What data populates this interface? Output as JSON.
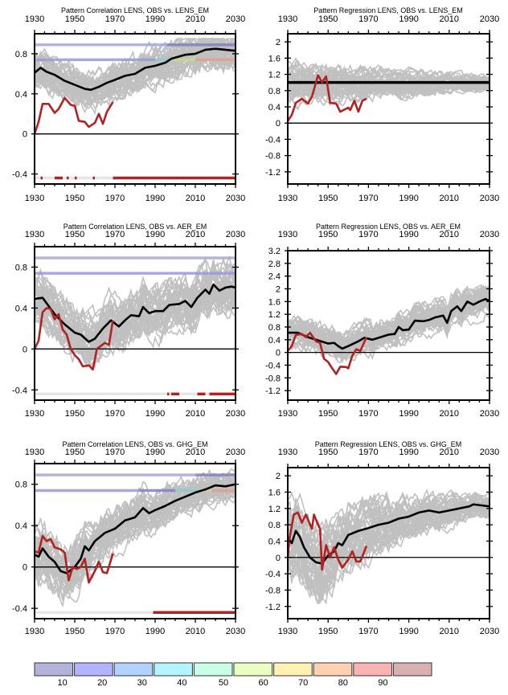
{
  "chart_data": [
    {
      "type": "line",
      "title": "Pattern Correlation LENS, OBS vs. LENS_EM",
      "xlim": [
        1930,
        2030
      ],
      "ylim": [
        -0.5,
        1.0
      ],
      "xticks": [
        1930,
        1950,
        1970,
        1990,
        2010,
        2030
      ],
      "yticks": [
        -0.4,
        0,
        0.4,
        0.8
      ],
      "ytick_labels": [
        "-0.4",
        "0",
        "0.4",
        "0.8"
      ],
      "ensemble": {
        "members": 40,
        "spread": 0.18,
        "color": "#c0c0c0"
      },
      "mean": {
        "color": "#000000",
        "x": [
          1930,
          1933,
          1936,
          1940,
          1945,
          1950,
          1955,
          1958,
          1962,
          1966,
          1970,
          1975,
          1980,
          1985,
          1990,
          1995,
          1998,
          2005,
          2010,
          2015,
          2020,
          2025,
          2030
        ],
        "y": [
          0.61,
          0.66,
          0.62,
          0.59,
          0.53,
          0.49,
          0.45,
          0.44,
          0.47,
          0.51,
          0.54,
          0.58,
          0.6,
          0.66,
          0.68,
          0.71,
          0.75,
          0.79,
          0.8,
          0.84,
          0.85,
          0.84,
          0.83
        ]
      },
      "obs": {
        "color": "#b22222",
        "x": [
          1930,
          1932,
          1934,
          1937,
          1940,
          1942,
          1945,
          1948,
          1950,
          1952,
          1955,
          1957,
          1960,
          1962,
          1964,
          1966,
          1969
        ],
        "y": [
          0.0,
          0.12,
          0.3,
          0.3,
          0.21,
          0.25,
          0.36,
          0.29,
          0.28,
          0.13,
          0.12,
          0.07,
          0.11,
          0.2,
          0.1,
          0.22,
          0.32
        ]
      },
      "ref_lines": [
        {
          "y": 0.89,
          "segments": [
            [
              1930,
              1996,
              "#a8a8dc"
            ],
            [
              1996,
              2030,
              "#8080c4"
            ]
          ]
        },
        {
          "y": 0.74,
          "segments": [
            [
              1930,
              1990,
              "#9a9ad8"
            ],
            [
              1990,
              1998,
              "#88cccc"
            ],
            [
              1998,
              2010,
              "#c8d890"
            ],
            [
              2010,
              2030,
              "#e0a090"
            ]
          ]
        }
      ],
      "significance": {
        "y": -0.44,
        "red_ranges": [
          [
            1933,
            1934
          ],
          [
            1940,
            1944
          ],
          [
            1946,
            1947
          ],
          [
            1950,
            1951
          ],
          [
            1959,
            1960
          ],
          [
            1969,
            2030
          ]
        ]
      }
    },
    {
      "type": "line",
      "title": "Pattern Regression LENS, OBS vs. LENS_EM",
      "xlim": [
        1930,
        2030
      ],
      "ylim": [
        -1.5,
        2.2
      ],
      "xticks": [
        1930,
        1950,
        1970,
        1990,
        2010,
        2030
      ],
      "yticks": [
        -1.2,
        -0.8,
        -0.4,
        0,
        0.4,
        0.8,
        1.2,
        1.6,
        2
      ],
      "ytick_labels": [
        "-1.2",
        "-0.8",
        "-0.4",
        "0",
        "0.4",
        "0.8",
        "1.2",
        "1.6",
        "2"
      ],
      "ensemble": {
        "members": 40,
        "spread": 0.45,
        "spread_end": 0.15,
        "color": "#c0c0c0"
      },
      "mean": {
        "color": "#000000",
        "x": [
          1930,
          2030
        ],
        "y": [
          1.0,
          1.0
        ]
      },
      "obs": {
        "color": "#b22222",
        "x": [
          1930,
          1932,
          1934,
          1937,
          1940,
          1942,
          1945,
          1947,
          1949,
          1951,
          1954,
          1956,
          1960,
          1961,
          1963,
          1965,
          1967,
          1969
        ],
        "y": [
          0.05,
          0.2,
          0.5,
          0.6,
          0.48,
          0.65,
          1.18,
          1.0,
          1.15,
          0.5,
          0.48,
          0.28,
          0.38,
          0.32,
          0.55,
          0.28,
          0.55,
          0.6
        ]
      }
    },
    {
      "type": "line",
      "title": "Pattern Correlation LENS, OBS vs. AER_EM",
      "xlim": [
        1930,
        2030
      ],
      "ylim": [
        -0.5,
        1.0
      ],
      "xticks": [
        1930,
        1950,
        1970,
        1990,
        2010,
        2030
      ],
      "yticks": [
        -0.4,
        0,
        0.4,
        0.8
      ],
      "ytick_labels": [
        "-0.4",
        "0",
        "0.4",
        "0.8"
      ],
      "ensemble": {
        "members": 40,
        "spread": 0.22,
        "color": "#c0c0c0"
      },
      "mean": {
        "color": "#000000",
        "x": [
          1930,
          1934,
          1937,
          1940,
          1945,
          1950,
          1953,
          1957,
          1960,
          1964,
          1968,
          1972,
          1975,
          1978,
          1982,
          1984,
          1987,
          1990,
          1994,
          1997,
          2002,
          2005,
          2008,
          2011,
          2015,
          2017,
          2019,
          2022,
          2025,
          2028,
          2030
        ],
        "y": [
          0.49,
          0.5,
          0.42,
          0.34,
          0.24,
          0.16,
          0.14,
          0.07,
          0.1,
          0.2,
          0.28,
          0.22,
          0.28,
          0.33,
          0.32,
          0.41,
          0.35,
          0.37,
          0.37,
          0.43,
          0.44,
          0.47,
          0.41,
          0.5,
          0.58,
          0.54,
          0.63,
          0.57,
          0.6,
          0.61,
          0.6
        ]
      },
      "obs": {
        "color": "#b22222",
        "x": [
          1930,
          1932,
          1934,
          1936,
          1938,
          1940,
          1942,
          1944,
          1946,
          1948,
          1950,
          1952,
          1954,
          1957,
          1959,
          1961,
          1965,
          1967,
          1969
        ],
        "y": [
          0.0,
          0.08,
          0.36,
          0.4,
          0.39,
          0.29,
          0.34,
          0.19,
          0.14,
          0.0,
          -0.06,
          -0.1,
          -0.17,
          -0.16,
          -0.2,
          0.0,
          0.06,
          0.04,
          0.28
        ]
      },
      "ref_lines": [
        {
          "y": 0.89,
          "segments": [
            [
              1930,
              2030,
              "#a8a8dc"
            ]
          ]
        },
        {
          "y": 0.74,
          "segments": [
            [
              1930,
              2030,
              "#9a9ad8"
            ]
          ]
        }
      ],
      "significance": {
        "y": -0.44,
        "red_ranges": [
          [
            1996,
            1997
          ],
          [
            1998,
            2002
          ],
          [
            2011,
            2015
          ],
          [
            2017,
            2030
          ]
        ]
      }
    },
    {
      "type": "line",
      "title": "Pattern Regression LENS, OBS vs. AER_EM",
      "xlim": [
        1930,
        2030
      ],
      "ylim": [
        -1.5,
        3.2
      ],
      "xticks": [
        1930,
        1950,
        1970,
        1990,
        2010,
        2030
      ],
      "yticks": [
        -1.2,
        -0.8,
        -0.4,
        0,
        0.4,
        0.8,
        1.2,
        1.6,
        2,
        2.4,
        2.8,
        3.2
      ],
      "ytick_labels": [
        "-1.2",
        "-0.8",
        "-0.4",
        "0",
        "0.4",
        "0.8",
        "1.2",
        "1.6",
        "2",
        "2.4",
        "2.8",
        "3.2"
      ],
      "ensemble": {
        "members": 40,
        "spread": 0.45,
        "color": "#c0c0c0"
      },
      "mean": {
        "color": "#000000",
        "x": [
          1930,
          1935,
          1940,
          1945,
          1950,
          1953,
          1955,
          1957,
          1960,
          1965,
          1968,
          1972,
          1976,
          1980,
          1983,
          1985,
          1987,
          1990,
          1993,
          1997,
          2000,
          2003,
          2007,
          2009,
          2011,
          2014,
          2016,
          2019,
          2022,
          2025,
          2028,
          2030
        ],
        "y": [
          0.62,
          0.62,
          0.48,
          0.38,
          0.28,
          0.3,
          0.2,
          0.12,
          0.2,
          0.35,
          0.46,
          0.4,
          0.48,
          0.56,
          0.58,
          0.8,
          0.7,
          0.72,
          1.0,
          0.98,
          1.02,
          1.1,
          1.16,
          0.93,
          1.3,
          1.45,
          1.3,
          1.6,
          1.5,
          1.6,
          1.68,
          1.62
        ]
      },
      "obs": {
        "color": "#b22222",
        "x": [
          1930,
          1932,
          1934,
          1937,
          1939,
          1941,
          1944,
          1946,
          1948,
          1950,
          1952,
          1954,
          1956,
          1959,
          1960,
          1962,
          1964,
          1966,
          1969
        ],
        "y": [
          0.05,
          0.2,
          0.55,
          0.58,
          0.48,
          0.62,
          0.35,
          0.3,
          -0.2,
          -0.3,
          -0.5,
          -0.68,
          -0.45,
          -0.46,
          -0.5,
          -0.1,
          0.1,
          0.05,
          0.48
        ]
      }
    },
    {
      "type": "line",
      "title": "Pattern Correlation LENS, OBS vs. GHG_EM",
      "xlim": [
        1930,
        2030
      ],
      "ylim": [
        -0.5,
        1.0
      ],
      "xticks": [
        1930,
        1950,
        1970,
        1990,
        2010,
        2030
      ],
      "yticks": [
        -0.4,
        0,
        0.4,
        0.8
      ],
      "ytick_labels": [
        "-0.4",
        "0",
        "0.4",
        "0.8"
      ],
      "ensemble": {
        "members": 40,
        "spread": 0.28,
        "spread_end": 0.12,
        "color": "#c0c0c0"
      },
      "mean": {
        "color": "#000000",
        "x": [
          1930,
          1932,
          1934,
          1937,
          1940,
          1943,
          1946,
          1950,
          1953,
          1955,
          1957,
          1960,
          1965,
          1970,
          1975,
          1980,
          1984,
          1987,
          1990,
          1995,
          2000,
          2005,
          2010,
          2015,
          2020,
          2025,
          2030
        ],
        "y": [
          0.12,
          0.1,
          0.18,
          0.1,
          0.05,
          -0.04,
          -0.06,
          0.0,
          0.08,
          0.2,
          0.16,
          0.25,
          0.33,
          0.37,
          0.45,
          0.48,
          0.57,
          0.52,
          0.55,
          0.59,
          0.64,
          0.68,
          0.72,
          0.75,
          0.79,
          0.78,
          0.8
        ]
      },
      "obs": {
        "color": "#b22222",
        "x": [
          1930,
          1932,
          1934,
          1936,
          1938,
          1940,
          1943,
          1945,
          1947,
          1949,
          1951,
          1953,
          1955,
          1957,
          1960,
          1962,
          1964,
          1966,
          1969
        ],
        "y": [
          0.15,
          0.14,
          0.3,
          0.25,
          0.27,
          0.19,
          0.17,
          0.14,
          -0.13,
          0.0,
          -0.02,
          0.0,
          0.08,
          -0.15,
          -0.04,
          0.05,
          -0.05,
          -0.06,
          0.13
        ]
      },
      "ref_lines": [
        {
          "y": 0.89,
          "segments": [
            [
              1930,
              2010,
              "#a8a8dc"
            ],
            [
              2010,
              2030,
              "#8080c4"
            ]
          ]
        },
        {
          "y": 0.74,
          "segments": [
            [
              1930,
              1982,
              "#9a9ad8"
            ],
            [
              1982,
              2000,
              "#7f7fc8"
            ],
            [
              2000,
              2012,
              "#88cccc"
            ],
            [
              2012,
              2018,
              "#c8d890"
            ],
            [
              2018,
              2030,
              "#e0a090"
            ]
          ]
        }
      ],
      "significance": {
        "y": -0.44,
        "red_ranges": [
          [
            1989,
            2030
          ]
        ]
      }
    },
    {
      "type": "line",
      "title": "Pattern Regression LENS, OBS vs. GHG_EM",
      "xlim": [
        1930,
        2030
      ],
      "ylim": [
        -1.5,
        2.2
      ],
      "xticks": [
        1930,
        1950,
        1970,
        1990,
        2010,
        2030
      ],
      "yticks": [
        -1.2,
        -0.8,
        -0.4,
        0,
        0.4,
        0.8,
        1.2,
        1.6,
        2
      ],
      "ytick_labels": [
        "-1.2",
        "-0.8",
        "-0.4",
        "0",
        "0.4",
        "0.8",
        "1.2",
        "1.6",
        "2"
      ],
      "ensemble": {
        "members": 40,
        "spread": 0.9,
        "spread_end": 0.2,
        "color": "#c0c0c0"
      },
      "mean": {
        "color": "#000000",
        "x": [
          1930,
          1932,
          1934,
          1936,
          1938,
          1941,
          1944,
          1947,
          1950,
          1953,
          1955,
          1957,
          1960,
          1965,
          1970,
          1975,
          1980,
          1985,
          1990,
          1995,
          2000,
          2005,
          2010,
          2015,
          2020,
          2022,
          2030
        ],
        "y": [
          0.5,
          0.35,
          0.65,
          0.5,
          0.25,
          0.0,
          -0.12,
          -0.15,
          0.05,
          0.15,
          0.35,
          0.3,
          0.55,
          0.65,
          0.72,
          0.8,
          0.85,
          0.95,
          1.0,
          1.1,
          1.15,
          1.1,
          1.15,
          1.2,
          1.25,
          1.3,
          1.25
        ]
      },
      "obs": {
        "color": "#b22222",
        "x": [
          1930,
          1931,
          1933,
          1935,
          1937,
          1939,
          1942,
          1943,
          1945,
          1946,
          1947,
          1949,
          1951,
          1953,
          1955,
          1957,
          1960,
          1962,
          1964,
          1966,
          1969
        ],
        "y": [
          0.0,
          0.5,
          1.05,
          1.1,
          0.85,
          1.05,
          0.7,
          1.05,
          0.8,
          0.7,
          -0.3,
          0.3,
          0.0,
          0.25,
          -0.05,
          -0.25,
          -0.05,
          0.15,
          -0.1,
          -0.1,
          0.28
        ]
      }
    }
  ],
  "colorbar": {
    "colors": [
      "#b3b3d9",
      "#b3b3ff",
      "#b3d1ff",
      "#b3f5ff",
      "#c8ffe6",
      "#ebffc3",
      "#fff2b3",
      "#ffd1b3",
      "#f9b3b3",
      "#d9b0b0"
    ],
    "labels": [
      "10",
      "20",
      "30",
      "40",
      "50",
      "60",
      "70",
      "80",
      "90"
    ]
  }
}
